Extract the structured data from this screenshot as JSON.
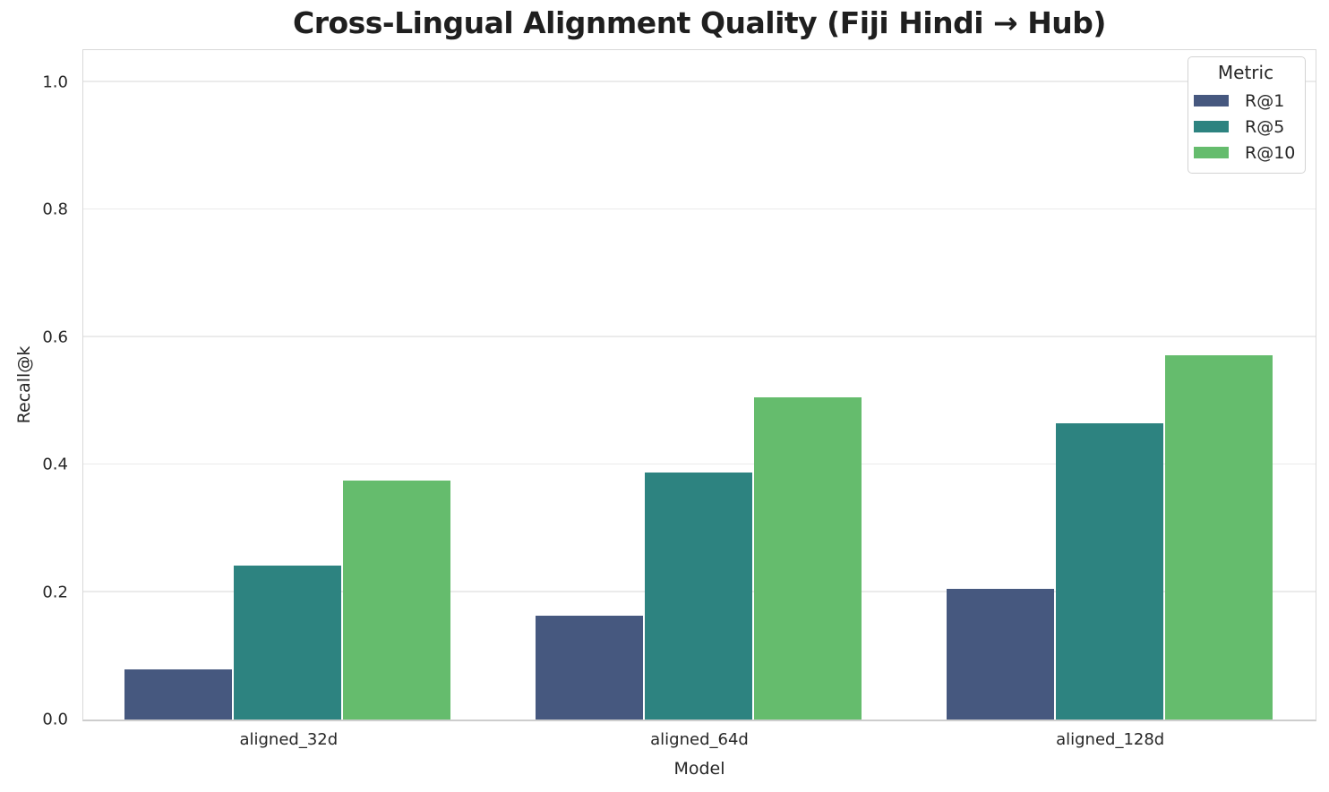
{
  "chart_data": {
    "type": "bar",
    "title": "Cross-Lingual Alignment Quality (Fiji Hindi → Hub)",
    "xlabel": "Model",
    "ylabel": "Recall@k",
    "categories": [
      "aligned_32d",
      "aligned_64d",
      "aligned_128d"
    ],
    "series": [
      {
        "name": "R@1",
        "color": "#46587F",
        "values": [
          0.078,
          0.163,
          0.205
        ]
      },
      {
        "name": "R@5",
        "color": "#2D8380",
        "values": [
          0.241,
          0.387,
          0.465
        ]
      },
      {
        "name": "R@10",
        "color": "#65BC6D",
        "values": [
          0.375,
          0.505,
          0.572
        ]
      }
    ],
    "ylim": [
      0,
      1.05
    ],
    "yticks": [
      0.0,
      0.2,
      0.4,
      0.6,
      0.8,
      1.0
    ],
    "grid": true,
    "legend": {
      "title": "Metric",
      "position": "upper right"
    },
    "colors": {
      "background": "#ffffff",
      "gridline": "#ebebeb",
      "spine": "#d9d9d9",
      "text": "#262626"
    }
  }
}
